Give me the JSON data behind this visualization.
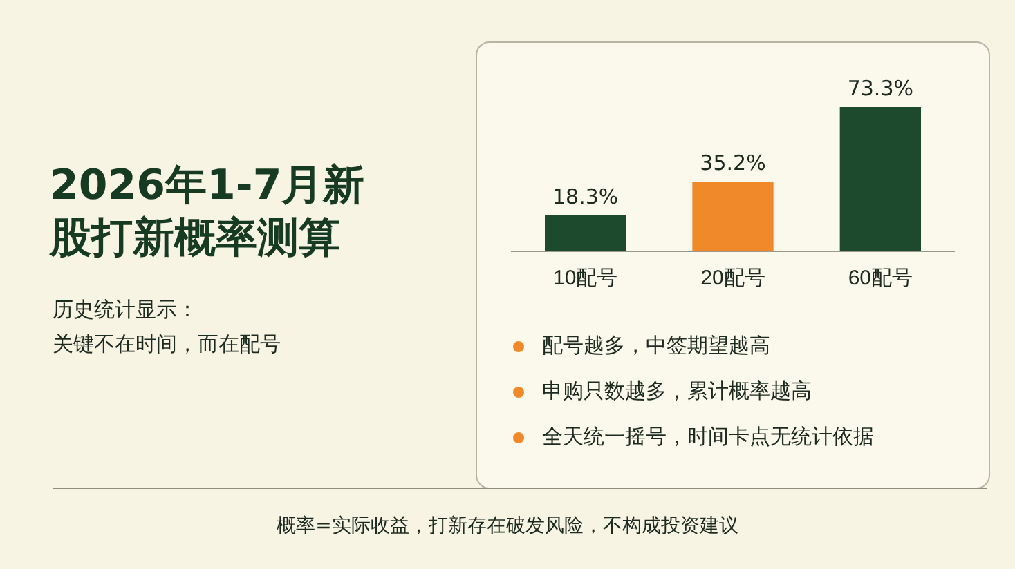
{
  "chart_data": {
    "type": "bar",
    "title": "2026年1-7月新股打新概率测算",
    "subtitle": "历史统计显示：",
    "categories": [
      "10配号",
      "20配号",
      "60配号"
    ],
    "values": [
      18.3,
      35.2,
      73.3
    ],
    "value_labels": [
      "18.3%",
      "35.2%",
      "73.3%"
    ],
    "colors": [
      "#1d4a2c",
      "#f0892a",
      "#1d4a2c"
    ],
    "tick_labels": "x",
    "annotations": [
      "关键不在时间，而在配号",
      "配号越多，中签期望越高",
      "申购只数越多，累计概率越高",
      "全天统一摇号，时间卡点无统计依据",
      "概率=实际收益，打新存在破发风险，不构成投资建议"
    ]
  }
}
